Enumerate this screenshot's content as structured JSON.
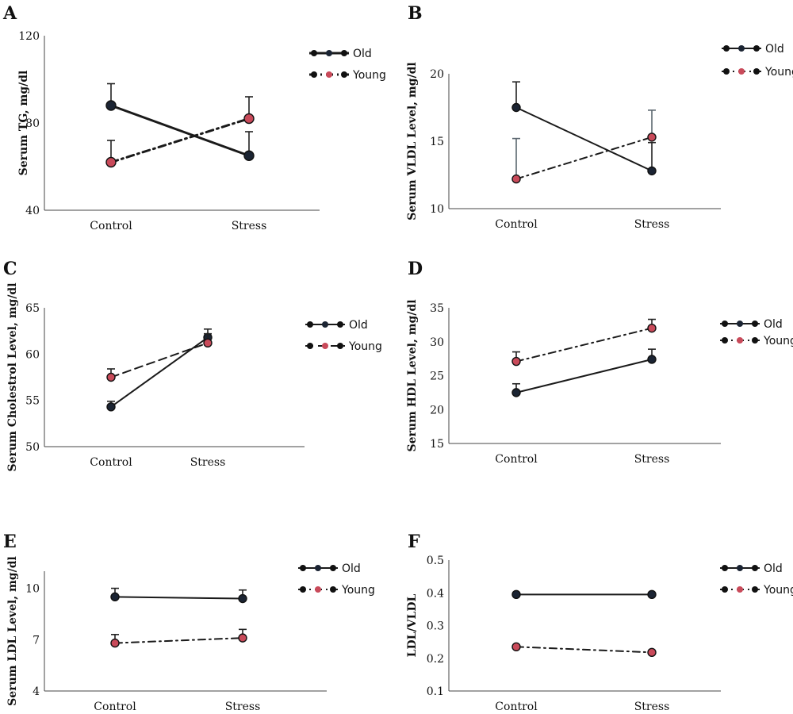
{
  "colors": {
    "old_line": "#1a1a1a",
    "old_marker": "#1b2433",
    "young_marker": "#c94a5a",
    "errorbar": "#5c6770",
    "axis": "#444444"
  },
  "chart_data": [
    {
      "panel": "A",
      "type": "line",
      "ylabel": "Serum TG, mg/dl",
      "categories": [
        "Control",
        "Stress"
      ],
      "ylim": [
        40,
        120
      ],
      "yticks": [
        "40",
        "80",
        "120"
      ],
      "series": [
        {
          "name": "Old",
          "values": [
            88,
            65
          ],
          "errors": [
            10,
            11
          ],
          "style": "solid"
        },
        {
          "name": "Young",
          "values": [
            62,
            82
          ],
          "errors": [
            10,
            10
          ],
          "style": "dashdot"
        }
      ],
      "legend_position": "right"
    },
    {
      "panel": "B",
      "type": "line",
      "ylabel": "Serum VLDL Level, mg/dl",
      "categories": [
        "Control",
        "Stress"
      ],
      "ylim": [
        10,
        20
      ],
      "yticks": [
        "10",
        "15",
        "20"
      ],
      "series": [
        {
          "name": "Old",
          "values": [
            17.5,
            12.8
          ],
          "errors": [
            1.9,
            2.1
          ],
          "style": "solid"
        },
        {
          "name": "Young",
          "values": [
            12.2,
            15.3
          ],
          "errors": [
            3.0,
            2.0
          ],
          "style": "dashdot"
        }
      ],
      "legend_position": "right"
    },
    {
      "panel": "C",
      "type": "line",
      "ylabel": "Serum Cholestrol Level, mg/dl",
      "categories": [
        "Control",
        "Stress"
      ],
      "ylim": [
        50,
        65
      ],
      "yticks": [
        "50",
        "55",
        "60",
        "65"
      ],
      "series": [
        {
          "name": "Old",
          "values": [
            54.3,
            61.8
          ],
          "errors": [
            0.6,
            0.9
          ],
          "style": "solid"
        },
        {
          "name": "Young",
          "values": [
            57.5,
            61.2
          ],
          "errors": [
            0.9,
            1.0
          ],
          "style": "dashed"
        }
      ],
      "legend_position": "right"
    },
    {
      "panel": "D",
      "type": "line",
      "ylabel": "Serum HDL Level, mg/dl",
      "categories": [
        "Control",
        "Stress"
      ],
      "ylim": [
        15,
        35
      ],
      "yticks": [
        "15",
        "20",
        "25",
        "30",
        "35"
      ],
      "series": [
        {
          "name": "Old",
          "values": [
            22.5,
            27.4
          ],
          "errors": [
            1.3,
            1.5
          ],
          "style": "solid"
        },
        {
          "name": "Young",
          "values": [
            27.1,
            32.0
          ],
          "errors": [
            1.4,
            1.3
          ],
          "style": "dashdot"
        }
      ],
      "legend_position": "right"
    },
    {
      "panel": "E",
      "type": "line",
      "ylabel": "Serum LDL Level, mg/dl",
      "categories": [
        "Control",
        "Stress"
      ],
      "ylim": [
        4,
        11
      ],
      "yticks": [
        "4",
        "7",
        "10"
      ],
      "series": [
        {
          "name": "Old",
          "values": [
            9.5,
            9.4
          ],
          "errors": [
            0.5,
            0.5
          ],
          "style": "solid"
        },
        {
          "name": "Young",
          "values": [
            6.8,
            7.1
          ],
          "errors": [
            0.5,
            0.5
          ],
          "style": "dashdot"
        }
      ],
      "legend_position": "right"
    },
    {
      "panel": "F",
      "type": "line",
      "ylabel": "LDL/VLDL",
      "categories": [
        "Control",
        "Stress"
      ],
      "ylim": [
        0.1,
        0.5
      ],
      "yticks": [
        "0.1",
        "0.2",
        "0.3",
        "0.4",
        "0.5"
      ],
      "series": [
        {
          "name": "Old",
          "values": [
            0.395,
            0.395
          ],
          "errors": [
            0,
            0
          ],
          "style": "solid"
        },
        {
          "name": "Young",
          "values": [
            0.235,
            0.218
          ],
          "errors": [
            0,
            0
          ],
          "style": "dashdot"
        }
      ],
      "legend_position": "right"
    }
  ]
}
